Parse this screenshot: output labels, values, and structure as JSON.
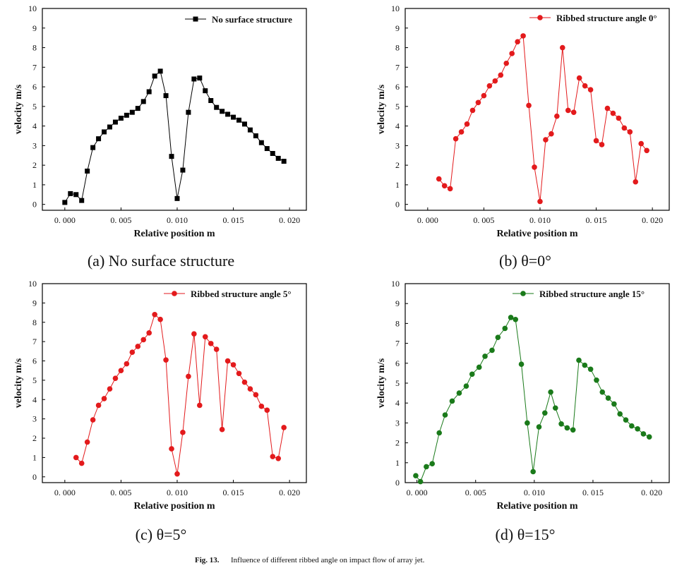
{
  "figure_caption_label": "Fig. 13.",
  "figure_caption_text": "Influence of different ribbed angle on impact flow of array jet.",
  "chart_data": [
    {
      "type": "line",
      "caption": "(a) No surface structure",
      "xlabel": "Relative position  m",
      "ylabel": "velocity m/s",
      "xlim": [
        -0.002,
        0.0215
      ],
      "ylim": [
        -0.3,
        10
      ],
      "xticks": [
        0.0,
        0.005,
        0.01,
        0.015,
        0.02
      ],
      "xtick_labels": [
        "0. 000",
        "0. 005",
        "0. 010",
        "0. 015",
        "0. 020"
      ],
      "yticks": [
        0,
        1,
        2,
        3,
        4,
        5,
        6,
        7,
        8,
        9,
        10
      ],
      "legend_position": "top-right",
      "series": [
        {
          "name": "No surface structure",
          "color": "#000000",
          "marker": "square",
          "points": [
            [
              0.0,
              0.1
            ],
            [
              0.0005,
              0.55
            ],
            [
              0.001,
              0.5
            ],
            [
              0.0015,
              0.2
            ],
            [
              0.002,
              1.7
            ],
            [
              0.0025,
              2.9
            ],
            [
              0.003,
              3.35
            ],
            [
              0.0035,
              3.7
            ],
            [
              0.004,
              3.95
            ],
            [
              0.0045,
              4.2
            ],
            [
              0.005,
              4.4
            ],
            [
              0.0055,
              4.55
            ],
            [
              0.006,
              4.7
            ],
            [
              0.0065,
              4.9
            ],
            [
              0.007,
              5.25
            ],
            [
              0.0075,
              5.75
            ],
            [
              0.008,
              6.55
            ],
            [
              0.0085,
              6.8
            ],
            [
              0.009,
              5.55
            ],
            [
              0.0095,
              2.45
            ],
            [
              0.01,
              0.3
            ],
            [
              0.0105,
              1.75
            ],
            [
              0.011,
              4.7
            ],
            [
              0.0115,
              6.4
            ],
            [
              0.012,
              6.45
            ],
            [
              0.0125,
              5.8
            ],
            [
              0.013,
              5.3
            ],
            [
              0.0135,
              4.95
            ],
            [
              0.014,
              4.75
            ],
            [
              0.0145,
              4.6
            ],
            [
              0.015,
              4.45
            ],
            [
              0.0155,
              4.3
            ],
            [
              0.016,
              4.1
            ],
            [
              0.0165,
              3.8
            ],
            [
              0.017,
              3.5
            ],
            [
              0.0175,
              3.15
            ],
            [
              0.018,
              2.85
            ],
            [
              0.0185,
              2.6
            ],
            [
              0.019,
              2.35
            ],
            [
              0.0195,
              2.2
            ]
          ]
        }
      ]
    },
    {
      "type": "line",
      "caption": "(b) θ=0°",
      "xlabel": "Relative position  m",
      "ylabel": "velocity m/s",
      "xlim": [
        -0.002,
        0.0215
      ],
      "ylim": [
        -0.3,
        10
      ],
      "xticks": [
        0.0,
        0.005,
        0.01,
        0.015,
        0.02
      ],
      "xtick_labels": [
        "0. 000",
        "0. 005",
        "0. 010",
        "0. 015",
        "0. 020"
      ],
      "yticks": [
        0,
        1,
        2,
        3,
        4,
        5,
        6,
        7,
        8,
        9,
        10
      ],
      "legend_position": "top-right",
      "series": [
        {
          "name": "Ribbed structure angle 0°",
          "color": "#e31a1c",
          "marker": "circle",
          "points": [
            [
              0.001,
              1.3
            ],
            [
              0.0015,
              0.95
            ],
            [
              0.002,
              0.8
            ],
            [
              0.0025,
              3.35
            ],
            [
              0.003,
              3.7
            ],
            [
              0.0035,
              4.1
            ],
            [
              0.004,
              4.8
            ],
            [
              0.0045,
              5.2
            ],
            [
              0.005,
              5.55
            ],
            [
              0.0055,
              6.05
            ],
            [
              0.006,
              6.3
            ],
            [
              0.0065,
              6.6
            ],
            [
              0.007,
              7.2
            ],
            [
              0.0075,
              7.7
            ],
            [
              0.008,
              8.3
            ],
            [
              0.0085,
              8.6
            ],
            [
              0.009,
              5.05
            ],
            [
              0.0095,
              1.9
            ],
            [
              0.01,
              0.15
            ],
            [
              0.0105,
              3.3
            ],
            [
              0.011,
              3.6
            ],
            [
              0.0115,
              4.5
            ],
            [
              0.012,
              8.0
            ],
            [
              0.0125,
              4.8
            ],
            [
              0.013,
              4.7
            ],
            [
              0.0135,
              6.45
            ],
            [
              0.014,
              6.05
            ],
            [
              0.0145,
              5.85
            ],
            [
              0.015,
              3.25
            ],
            [
              0.0155,
              3.05
            ],
            [
              0.016,
              4.9
            ],
            [
              0.0165,
              4.65
            ],
            [
              0.017,
              4.4
            ],
            [
              0.0175,
              3.9
            ],
            [
              0.018,
              3.7
            ],
            [
              0.0185,
              1.15
            ],
            [
              0.019,
              3.1
            ],
            [
              0.0195,
              2.75
            ]
          ]
        }
      ]
    },
    {
      "type": "line",
      "caption": "(c) θ=5°",
      "xlabel": "Relative position  m",
      "ylabel": "velocity m/s",
      "xlim": [
        -0.002,
        0.0215
      ],
      "ylim": [
        -0.3,
        10
      ],
      "xticks": [
        0.0,
        0.005,
        0.01,
        0.015,
        0.02
      ],
      "xtick_labels": [
        "0. 000",
        "0. 005",
        "0. 010",
        "0. 015",
        "0. 020"
      ],
      "yticks": [
        0,
        1,
        2,
        3,
        4,
        5,
        6,
        7,
        8,
        9,
        10
      ],
      "legend_position": "top-right",
      "series": [
        {
          "name": "Ribbed structure angle 5°",
          "color": "#e31a1c",
          "marker": "circle",
          "points": [
            [
              0.001,
              1.0
            ],
            [
              0.0015,
              0.7
            ],
            [
              0.002,
              1.8
            ],
            [
              0.0025,
              2.95
            ],
            [
              0.003,
              3.7
            ],
            [
              0.0035,
              4.05
            ],
            [
              0.004,
              4.55
            ],
            [
              0.0045,
              5.1
            ],
            [
              0.005,
              5.5
            ],
            [
              0.0055,
              5.85
            ],
            [
              0.006,
              6.45
            ],
            [
              0.0065,
              6.75
            ],
            [
              0.007,
              7.1
            ],
            [
              0.0075,
              7.45
            ],
            [
              0.008,
              8.4
            ],
            [
              0.0085,
              8.15
            ],
            [
              0.009,
              6.05
            ],
            [
              0.0095,
              1.45
            ],
            [
              0.01,
              0.15
            ],
            [
              0.0105,
              2.3
            ],
            [
              0.011,
              5.2
            ],
            [
              0.0115,
              7.4
            ],
            [
              0.012,
              3.7
            ],
            [
              0.0125,
              7.25
            ],
            [
              0.013,
              6.9
            ],
            [
              0.0135,
              6.6
            ],
            [
              0.014,
              2.45
            ],
            [
              0.0145,
              6.0
            ],
            [
              0.015,
              5.8
            ],
            [
              0.0155,
              5.35
            ],
            [
              0.016,
              4.9
            ],
            [
              0.0165,
              4.55
            ],
            [
              0.017,
              4.25
            ],
            [
              0.0175,
              3.65
            ],
            [
              0.018,
              3.45
            ],
            [
              0.0185,
              1.05
            ],
            [
              0.019,
              0.95
            ],
            [
              0.0195,
              2.55
            ]
          ]
        }
      ]
    },
    {
      "type": "line",
      "caption": "(d) θ=15°",
      "xlabel": "Relative position  m",
      "ylabel": "velocity  m/s",
      "xlim": [
        -0.001,
        0.0215
      ],
      "ylim": [
        0,
        10
      ],
      "xticks": [
        0.0,
        0.005,
        0.01,
        0.015,
        0.02
      ],
      "xtick_labels": [
        "0. 000",
        "0. 005",
        "0. 010",
        "0. 015",
        "0. 020"
      ],
      "yticks": [
        0,
        1,
        2,
        3,
        4,
        5,
        6,
        7,
        8,
        9,
        10
      ],
      "legend_position": "top-right",
      "series": [
        {
          "name": "Ribbed structure angle  15°",
          "color": "#1a7a1a",
          "marker": "circle",
          "points": [
            [
              -0.0001,
              0.35
            ],
            [
              0.0003,
              0.05
            ],
            [
              0.0008,
              0.8
            ],
            [
              0.0013,
              0.95
            ],
            [
              0.0019,
              2.5
            ],
            [
              0.0024,
              3.4
            ],
            [
              0.003,
              4.1
            ],
            [
              0.0036,
              4.5
            ],
            [
              0.0042,
              4.85
            ],
            [
              0.0047,
              5.45
            ],
            [
              0.0053,
              5.8
            ],
            [
              0.0058,
              6.35
            ],
            [
              0.0064,
              6.65
            ],
            [
              0.0069,
              7.3
            ],
            [
              0.0075,
              7.75
            ],
            [
              0.008,
              8.3
            ],
            [
              0.0084,
              8.2
            ],
            [
              0.0089,
              5.95
            ],
            [
              0.0094,
              3.0
            ],
            [
              0.0099,
              0.55
            ],
            [
              0.0104,
              2.8
            ],
            [
              0.0109,
              3.5
            ],
            [
              0.0114,
              4.55
            ],
            [
              0.0118,
              3.75
            ],
            [
              0.0123,
              2.95
            ],
            [
              0.0128,
              2.75
            ],
            [
              0.0133,
              2.65
            ],
            [
              0.0138,
              6.15
            ],
            [
              0.0143,
              5.9
            ],
            [
              0.0148,
              5.7
            ],
            [
              0.0153,
              5.15
            ],
            [
              0.0158,
              4.55
            ],
            [
              0.0163,
              4.25
            ],
            [
              0.0168,
              3.95
            ],
            [
              0.0173,
              3.45
            ],
            [
              0.0178,
              3.15
            ],
            [
              0.0183,
              2.85
            ],
            [
              0.0188,
              2.7
            ],
            [
              0.0193,
              2.45
            ],
            [
              0.0198,
              2.3
            ]
          ]
        }
      ]
    }
  ]
}
